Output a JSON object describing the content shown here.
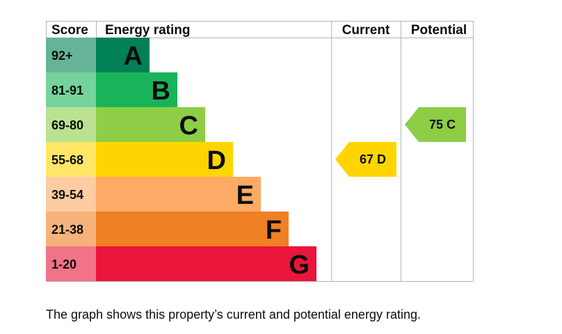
{
  "chart_data": {
    "type": "bar",
    "headers": {
      "score": "Score",
      "rating": "Energy rating",
      "current": "Current",
      "potential": "Potential"
    },
    "bands": [
      {
        "score": "92+",
        "letter": "A",
        "color": "#008054",
        "score_bg": "#66b398"
      },
      {
        "score": "81-91",
        "letter": "B",
        "color": "#19b459",
        "score_bg": "#75d29b"
      },
      {
        "score": "69-80",
        "letter": "C",
        "color": "#8dce46",
        "score_bg": "#bbe290"
      },
      {
        "score": "55-68",
        "letter": "D",
        "color": "#ffd500",
        "score_bg": "#ffe666"
      },
      {
        "score": "39-54",
        "letter": "E",
        "color": "#fcaa65",
        "score_bg": "#fdcca3"
      },
      {
        "score": "21-38",
        "letter": "F",
        "color": "#ef8023",
        "score_bg": "#f5b37b"
      },
      {
        "score": "1-20",
        "letter": "G",
        "color": "#e9153b",
        "score_bg": "#f27388"
      }
    ],
    "current": {
      "value": 67,
      "letter": "D",
      "label": "67  D",
      "color": "#ffd500"
    },
    "potential": {
      "value": 75,
      "letter": "C",
      "label": "75  C",
      "color": "#8dce46"
    }
  },
  "caption": "The graph shows this property’s current and potential energy rating."
}
